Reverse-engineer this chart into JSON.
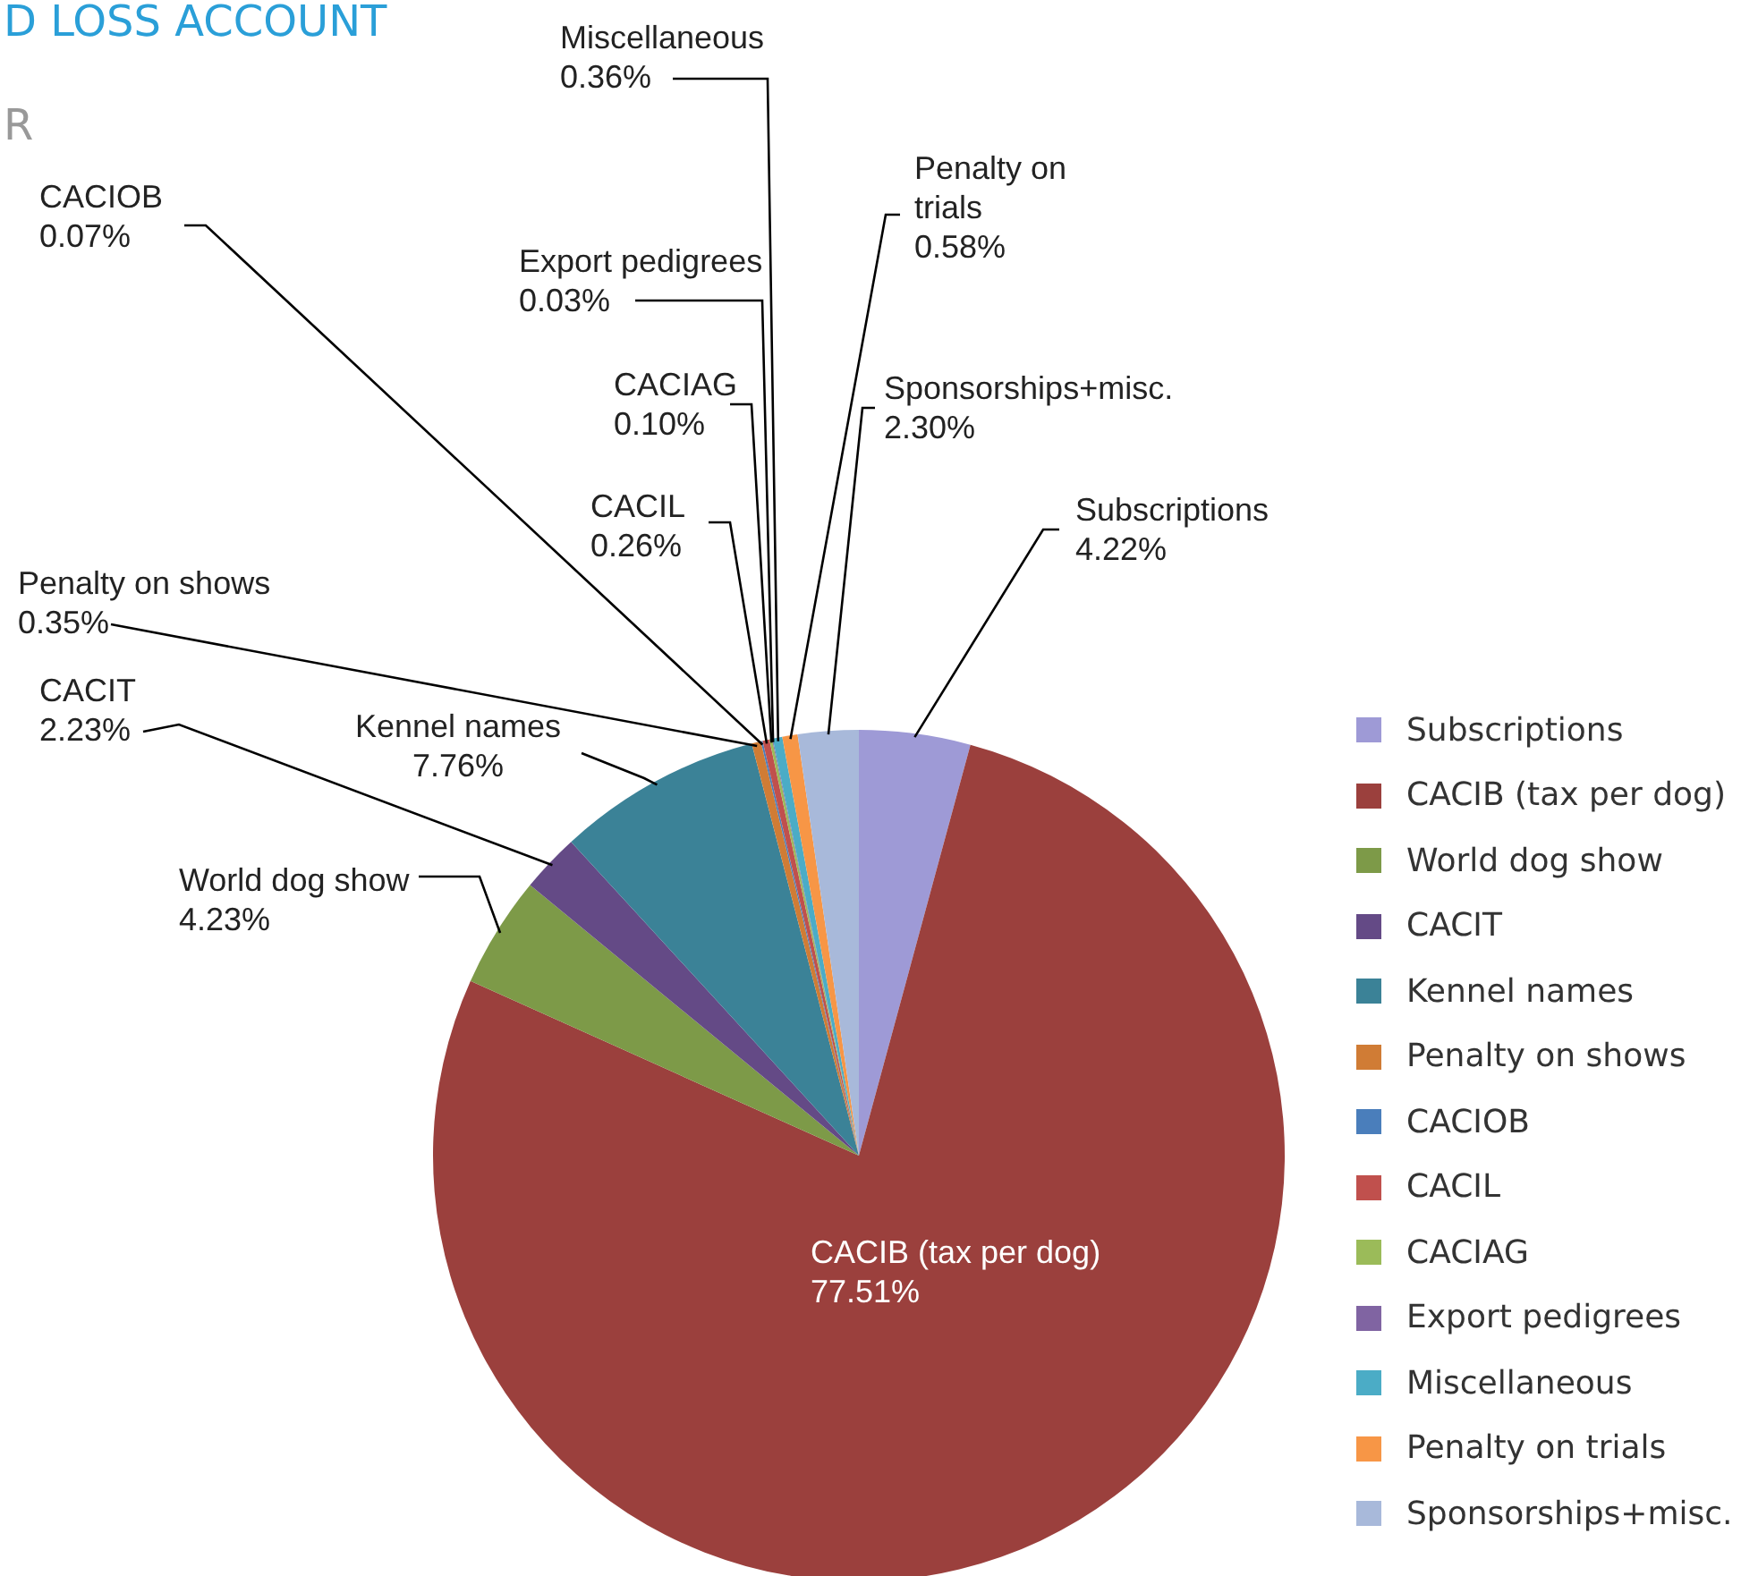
{
  "chart_data": {
    "type": "pie",
    "title": "D LOSS ACCOUNT",
    "subtitle": "R",
    "categories": [
      "Subscriptions",
      "CACIB (tax per dog)",
      "World dog show",
      "CACIT",
      "Kennel names",
      "Penalty on shows",
      "CACIOB",
      "CACIL",
      "CACIAG",
      "Export pedigrees",
      "Miscellaneous",
      "Penalty on trials",
      "Sponsorships+misc."
    ],
    "values": [
      4.22,
      77.51,
      4.23,
      2.23,
      7.76,
      0.35,
      0.07,
      0.26,
      0.1,
      0.03,
      0.36,
      0.58,
      2.3
    ],
    "value_labels": [
      "4.22%",
      "77.51%",
      "4.23%",
      "2.23%",
      "7.76%",
      "0.35%",
      "0.07%",
      "0.26%",
      "0.10%",
      "0.03%",
      "0.36%",
      "0.58%",
      "2.30%"
    ],
    "colors": [
      "#9e9ad6",
      "#9b403d",
      "#7d9a48",
      "#644a86",
      "#3b8297",
      "#d07c35",
      "#4a7ebb",
      "#c0504d",
      "#9bbb59",
      "#8064a2",
      "#4bacc6",
      "#f79646",
      "#a8b9da"
    ],
    "legend": "right"
  }
}
